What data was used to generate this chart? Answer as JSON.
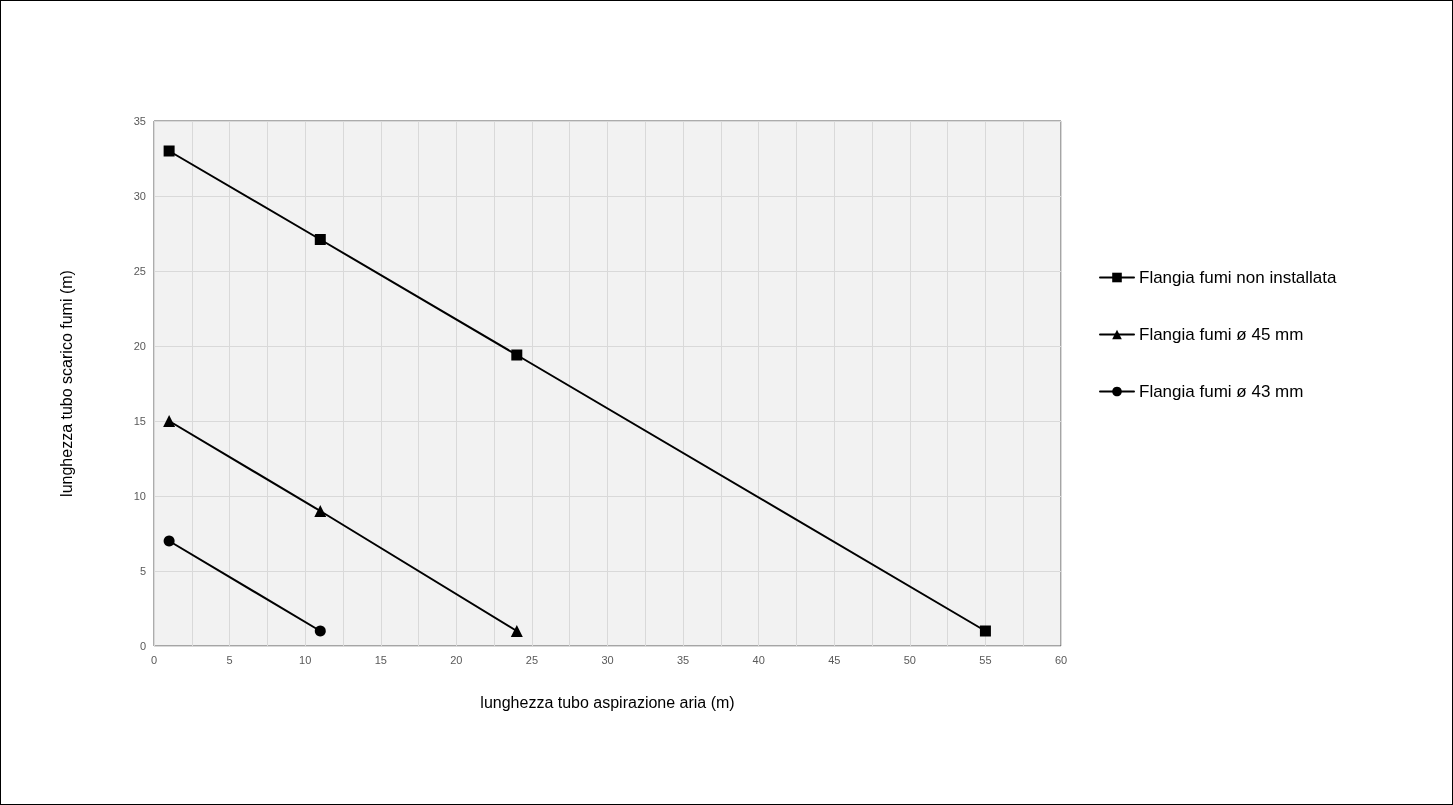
{
  "chart_data": {
    "type": "line",
    "xlabel": "lunghezza tubo aspirazione aria (m)",
    "ylabel": "lunghezza tubo scarico fumi (m)",
    "xlim": [
      0,
      60
    ],
    "xticks": [
      0,
      {
        "value": 2.5,
        "label": null
      },
      5,
      {
        "value": 7.5,
        "label": null
      },
      10,
      {
        "value": 12.5,
        "label": null
      },
      15,
      {
        "value": 17.5,
        "label": null
      },
      20,
      {
        "value": 22.5,
        "label": null
      },
      25,
      {
        "value": 27.5,
        "label": null
      },
      30,
      {
        "value": 32.5,
        "label": null
      },
      35,
      {
        "value": 37.5,
        "label": null
      },
      40,
      {
        "value": 42.5,
        "label": null
      },
      45,
      {
        "value": 47.5,
        "label": null
      },
      50,
      {
        "value": 52.5,
        "label": null
      },
      55,
      {
        "value": 57.5,
        "label": null
      },
      60
    ],
    "ylim": [
      0,
      35
    ],
    "yticks": [
      0,
      5,
      10,
      15,
      20,
      25,
      30,
      35
    ],
    "grid": true,
    "legend": "right",
    "line_style": "solid",
    "series": [
      {
        "name": "Flangia fumi non installata",
        "color": "#000000",
        "marker": "square",
        "x": [
          1,
          11,
          24,
          55
        ],
        "values": [
          33,
          27.1,
          19.4,
          1
        ]
      },
      {
        "name": "Flangia fumi ø 45 mm",
        "color": "#000000",
        "marker": "triangle",
        "x": [
          1,
          11,
          24
        ],
        "values": [
          15,
          9,
          1
        ]
      },
      {
        "name": "Flangia fumi ø 43 mm",
        "color": "#000000",
        "marker": "circle",
        "x": [
          1,
          11
        ],
        "values": [
          7,
          1
        ]
      }
    ]
  }
}
